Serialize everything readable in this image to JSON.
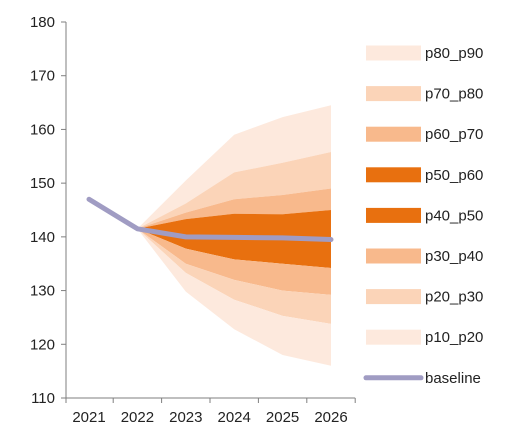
{
  "chart_data": {
    "type": "area",
    "title": "",
    "xlabel": "",
    "ylabel": "",
    "categories": [
      "2021",
      "2022",
      "2023",
      "2024",
      "2025",
      "2026"
    ],
    "ylim": [
      110,
      180
    ],
    "yticks": [
      110,
      120,
      130,
      140,
      150,
      160,
      170,
      180
    ],
    "grid": false,
    "legend_position": "right",
    "fan_bands": [
      {
        "name": "p80_p90",
        "color": "#fde9dd",
        "lower": [
          null,
          141.5,
          146.2,
          152.0,
          153.8,
          155.8
        ],
        "upper": [
          null,
          141.5,
          150.5,
          159.0,
          162.3,
          164.5
        ]
      },
      {
        "name": "p70_p80",
        "color": "#fbd4b8",
        "lower": [
          null,
          141.5,
          144.5,
          147.0,
          147.8,
          149.0
        ],
        "upper": [
          null,
          141.5,
          146.2,
          152.0,
          153.8,
          155.8
        ]
      },
      {
        "name": "p60_p70",
        "color": "#f8b98c",
        "lower": [
          null,
          141.5,
          143.3,
          144.3,
          144.2,
          145.0
        ],
        "upper": [
          null,
          141.5,
          144.5,
          147.0,
          147.8,
          149.0
        ]
      },
      {
        "name": "p50_p60",
        "color": "#e8700f",
        "lower": [
          null,
          141.5,
          140.2,
          140.3,
          140.0,
          139.5
        ],
        "upper": [
          null,
          141.5,
          143.3,
          144.3,
          144.2,
          145.0
        ]
      },
      {
        "name": "p40_p50",
        "color": "#e8700f",
        "lower": [
          null,
          141.5,
          137.8,
          135.8,
          135.0,
          134.2
        ],
        "upper": [
          null,
          141.5,
          140.2,
          140.3,
          140.0,
          139.5
        ]
      },
      {
        "name": "p30_p40",
        "color": "#f8b98c",
        "lower": [
          null,
          141.5,
          135.0,
          132.0,
          130.0,
          129.2
        ],
        "upper": [
          null,
          141.5,
          137.8,
          135.8,
          135.0,
          134.2
        ]
      },
      {
        "name": "p20_p30",
        "color": "#fbd4b8",
        "lower": [
          null,
          141.5,
          133.3,
          128.3,
          125.3,
          123.8
        ],
        "upper": [
          null,
          141.5,
          135.0,
          132.0,
          130.0,
          129.2
        ]
      },
      {
        "name": "p10_p20",
        "color": "#fde9dd",
        "lower": [
          null,
          141.5,
          129.8,
          122.8,
          118.0,
          116.0
        ],
        "upper": [
          null,
          141.5,
          133.3,
          128.3,
          125.3,
          123.8
        ]
      }
    ],
    "series": [
      {
        "name": "baseline",
        "color": "#a09cc3",
        "values": [
          147.0,
          141.5,
          140.0,
          139.9,
          139.8,
          139.5
        ]
      }
    ],
    "legend": [
      {
        "label": "p80_p90",
        "color": "#fde9dd",
        "kind": "patch"
      },
      {
        "label": "p70_p80",
        "color": "#fbd4b8",
        "kind": "patch"
      },
      {
        "label": "p60_p70",
        "color": "#f8b98c",
        "kind": "patch"
      },
      {
        "label": "p50_p60",
        "color": "#e8700f",
        "kind": "patch"
      },
      {
        "label": "p40_p50",
        "color": "#e8700f",
        "kind": "patch"
      },
      {
        "label": "p30_p40",
        "color": "#f8b98c",
        "kind": "patch"
      },
      {
        "label": "p20_p30",
        "color": "#fbd4b8",
        "kind": "patch"
      },
      {
        "label": "p10_p20",
        "color": "#fde9dd",
        "kind": "patch"
      },
      {
        "label": "baseline",
        "color": "#a09cc3",
        "kind": "line"
      }
    ]
  }
}
